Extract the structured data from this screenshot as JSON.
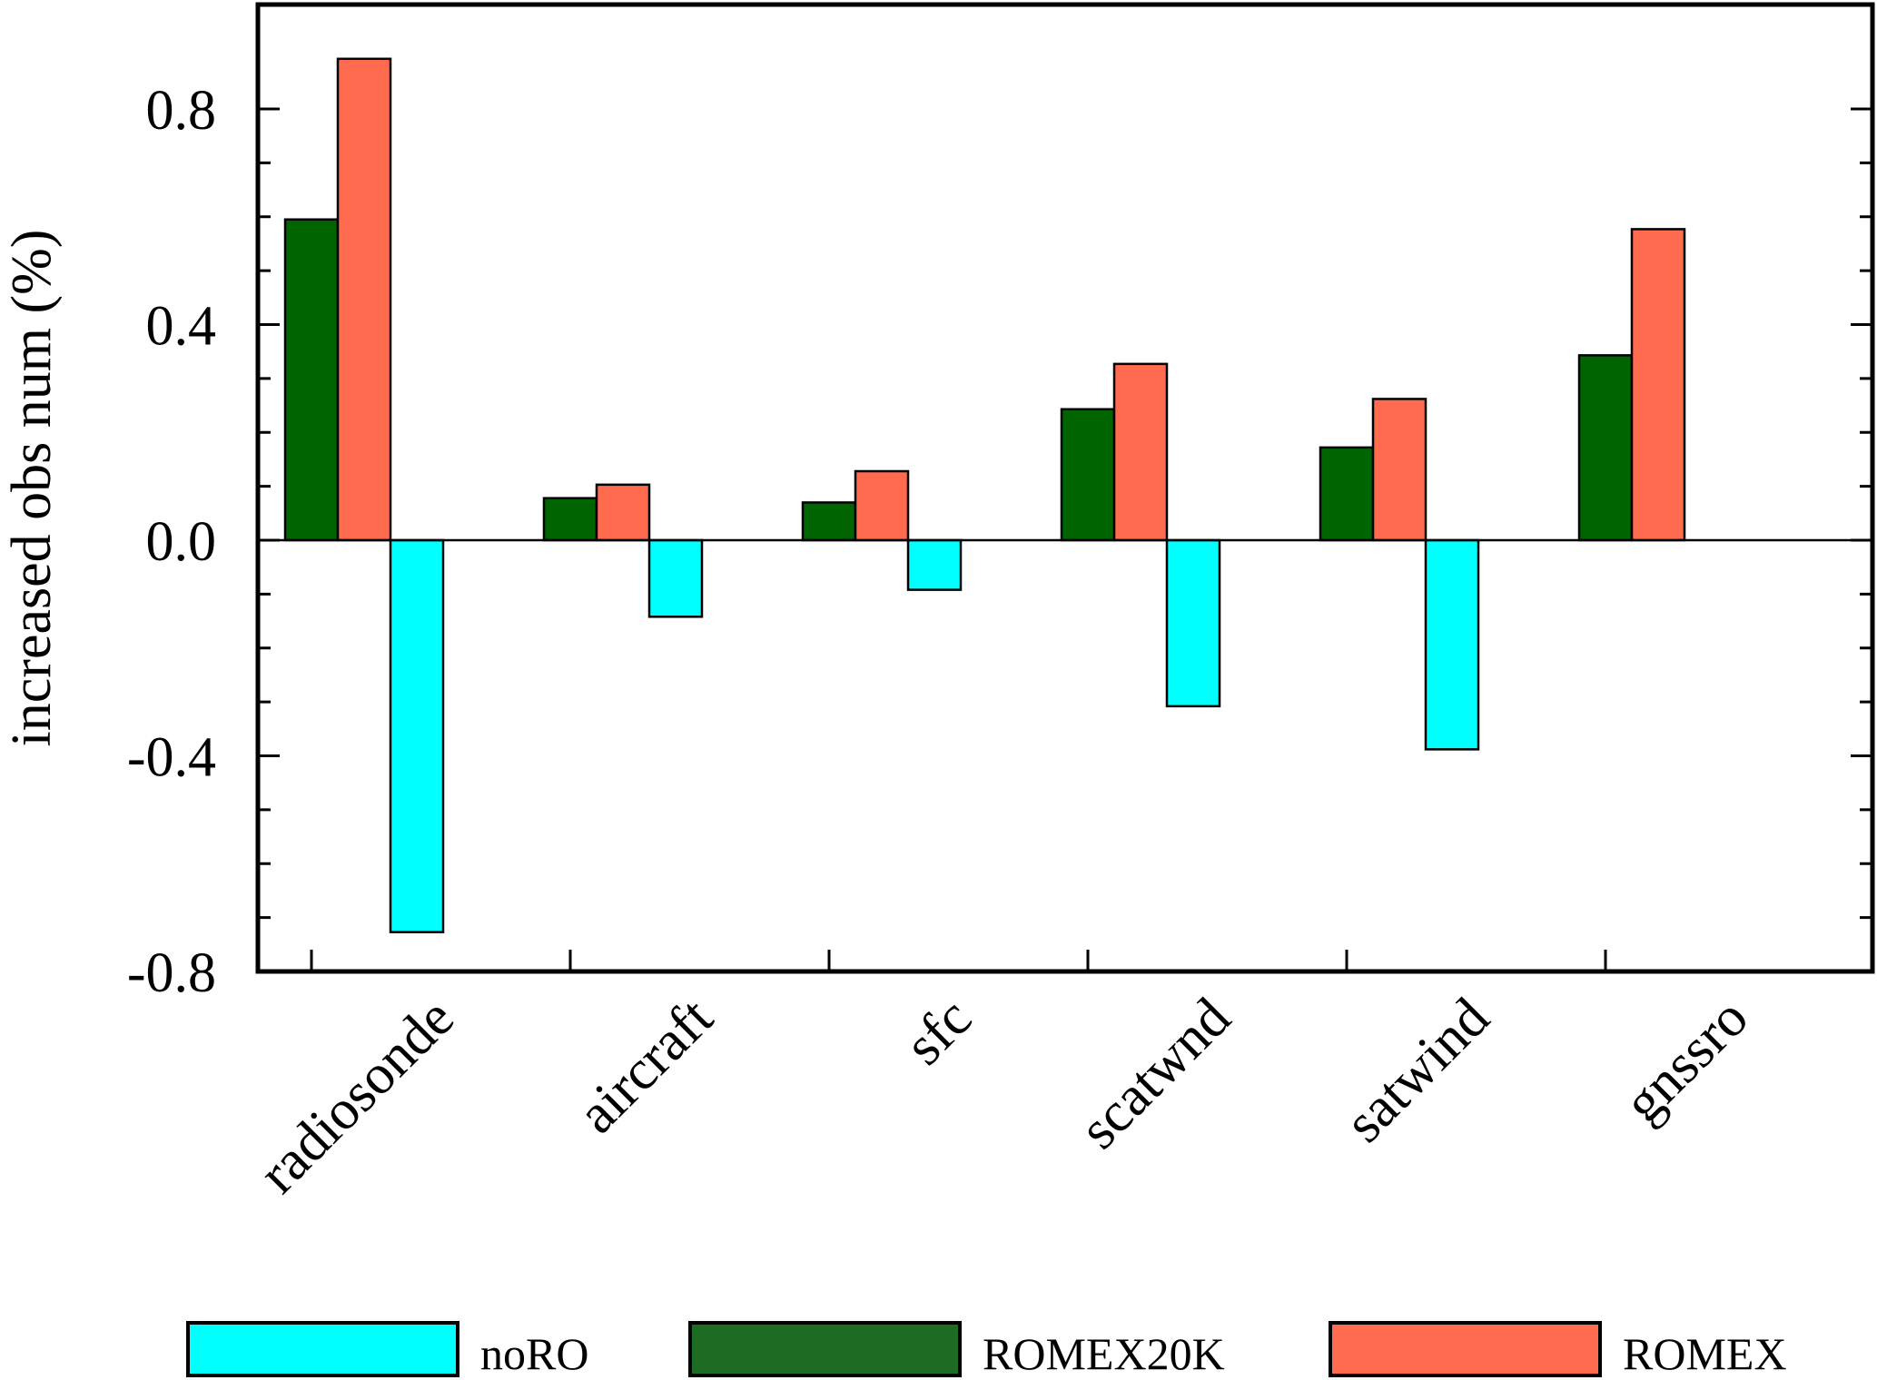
{
  "chart_data": {
    "type": "bar",
    "title": "",
    "xlabel": "",
    "ylabel": "increased obs num (%)",
    "ylim": [
      -0.8,
      0.8
    ],
    "yticks": [
      "0.8",
      "0.4",
      "0.0",
      "-0.4",
      "-0.8"
    ],
    "categories": [
      "radiosonde",
      "aircraft",
      "sfc",
      "scatwnd",
      "satwind",
      "gnssro"
    ],
    "series": [
      {
        "name": "ROMEX20K",
        "color": "#006400",
        "values": [
          0.595,
          0.078,
          0.07,
          0.243,
          0.172,
          0.343
        ]
      },
      {
        "name": "ROMEX",
        "color": "#FF6B4F",
        "values": [
          0.893,
          0.103,
          0.128,
          0.327,
          0.262,
          0.577
        ]
      },
      {
        "name": "noRO",
        "color": "#00FFFF",
        "values": [
          -0.727,
          -0.142,
          -0.092,
          -0.308,
          -0.388,
          null
        ]
      }
    ],
    "legend": {
      "position": "bottom",
      "items": [
        {
          "label": "noRO",
          "color": "#00FFFF"
        },
        {
          "label": "ROMEX20K",
          "color": "#1E6B24"
        },
        {
          "label": "ROMEX",
          "color": "#FF6B4F"
        }
      ]
    },
    "grid": false
  }
}
